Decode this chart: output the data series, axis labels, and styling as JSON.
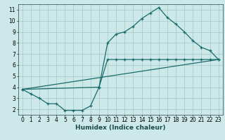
{
  "xlabel": "Humidex (Indice chaleur)",
  "bg_color": "#cce8e8",
  "grid_color": "#aacccc",
  "line_color": "#1a6b6b",
  "xlim": [
    -0.5,
    23.5
  ],
  "ylim": [
    1.5,
    11.5
  ],
  "xticks": [
    0,
    1,
    2,
    3,
    4,
    5,
    6,
    7,
    8,
    9,
    10,
    11,
    12,
    13,
    14,
    15,
    16,
    17,
    18,
    19,
    20,
    21,
    22,
    23
  ],
  "yticks": [
    2,
    3,
    4,
    5,
    6,
    7,
    8,
    9,
    10,
    11
  ],
  "line1_x": [
    0,
    1,
    2,
    3,
    4,
    5,
    6,
    7,
    8,
    9,
    10,
    11,
    12,
    13,
    14,
    15,
    16,
    17,
    18,
    19,
    20,
    21,
    22,
    23
  ],
  "line1_y": [
    3.8,
    3.4,
    3.0,
    2.5,
    2.5,
    1.9,
    1.9,
    1.9,
    2.3,
    4.0,
    6.5,
    6.5,
    6.5,
    6.5,
    6.5,
    6.5,
    6.5,
    6.5,
    6.5,
    6.5,
    6.5,
    6.5,
    6.5,
    6.5
  ],
  "line2_x": [
    0,
    9,
    10,
    11,
    12,
    13,
    14,
    15,
    16,
    17,
    18,
    19,
    20,
    21,
    22,
    23
  ],
  "line2_y": [
    3.8,
    4.0,
    8.0,
    8.8,
    9.0,
    9.5,
    10.2,
    10.7,
    11.2,
    10.3,
    9.7,
    9.0,
    8.2,
    7.6,
    7.3,
    6.5
  ],
  "line3_x": [
    0,
    23
  ],
  "line3_y": [
    3.8,
    6.5
  ]
}
